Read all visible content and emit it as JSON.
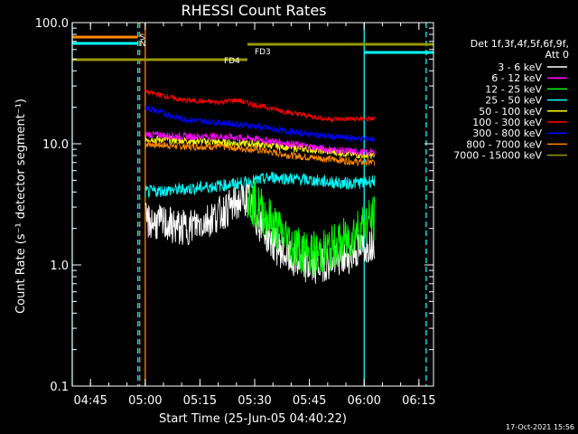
{
  "chart_data": {
    "type": "line",
    "title": "RHESSI Count Rates",
    "xlabel": "Start Time (25-Jun-05 04:40:22)",
    "ylabel": "Count Rate (s⁻¹ detector segment⁻¹)",
    "y_scale": "log",
    "ylim": [
      0.1,
      100
    ],
    "xlim": [
      "04:40",
      "06:19"
    ],
    "x_ticks": [
      "04:45",
      "05:00",
      "05:15",
      "05:30",
      "05:45",
      "06:00",
      "06:15"
    ],
    "y_ticks": [
      "0.1",
      "1.0",
      "10.0",
      "100.0"
    ],
    "legend_header": [
      "Det 1f,3f,4f,5f,6f,9f,",
      "Att 0"
    ],
    "legend_placement": "right",
    "series": [
      {
        "name": "3 - 6 keV",
        "color": "#ffffff",
        "x": [
          "05:00",
          "05:05",
          "05:10",
          "05:15",
          "05:20",
          "05:25",
          "05:28",
          "05:30",
          "05:35",
          "05:40",
          "05:45",
          "05:50",
          "05:55",
          "06:00",
          "06:03"
        ],
        "values": [
          2.3,
          2.2,
          2.0,
          2.2,
          2.6,
          3.2,
          3.6,
          2.5,
          1.5,
          1.1,
          0.95,
          1.05,
          1.15,
          1.4,
          1.6
        ]
      },
      {
        "name": "6 - 12 keV",
        "color": "#ff00ff",
        "x": [
          "05:00",
          "05:10",
          "05:20",
          "05:30",
          "05:40",
          "05:50",
          "06:00",
          "06:03"
        ],
        "values": [
          12,
          11.5,
          11.5,
          11,
          10,
          9,
          8.5,
          8.5
        ]
      },
      {
        "name": "12 - 25 keV",
        "color": "#00ff00",
        "x": [
          "05:28",
          "05:32",
          "05:36",
          "05:40",
          "05:45",
          "05:50",
          "05:55",
          "06:00",
          "06:03"
        ],
        "values": [
          3.5,
          2.8,
          2.0,
          1.5,
          1.2,
          1.3,
          1.6,
          2.2,
          2.4
        ]
      },
      {
        "name": "25 - 50 keV",
        "color": "#00ffff",
        "x": [
          "05:00",
          "05:10",
          "05:20",
          "05:28",
          "05:35",
          "05:45",
          "05:55",
          "06:00",
          "06:03"
        ],
        "values": [
          4.0,
          4.2,
          4.5,
          4.8,
          5.3,
          5.0,
          4.7,
          4.8,
          5.0
        ]
      },
      {
        "name": "50 - 100 keV",
        "color": "#ffff00",
        "x": [
          "05:00",
          "05:15",
          "05:30",
          "05:45",
          "06:00",
          "06:03"
        ],
        "values": [
          11,
          10.5,
          10,
          9,
          8,
          8
        ]
      },
      {
        "name": "100 - 300 keV",
        "color": "#ff0000",
        "x": [
          "05:00",
          "05:10",
          "05:20",
          "05:25",
          "05:30",
          "05:40",
          "05:50",
          "06:00",
          "06:03"
        ],
        "values": [
          27,
          23,
          22,
          23,
          21,
          18,
          16,
          16,
          16
        ]
      },
      {
        "name": "300 - 800 keV",
        "color": "#0000ff",
        "x": [
          "05:00",
          "05:10",
          "05:20",
          "05:30",
          "05:40",
          "05:50",
          "06:00",
          "06:03"
        ],
        "values": [
          20,
          16,
          15,
          14,
          12.5,
          11.5,
          11,
          11
        ]
      },
      {
        "name": "800 - 7000 keV",
        "color": "#ff8800",
        "x": [
          "05:00",
          "05:10",
          "05:20",
          "05:30",
          "05:40",
          "05:50",
          "06:00",
          "06:03"
        ],
        "values": [
          10,
          9.5,
          9.5,
          9,
          8,
          7.5,
          7,
          7
        ]
      },
      {
        "name": "7000 - 15000 keV",
        "color": "#999900",
        "x": [],
        "values": []
      }
    ],
    "annotations": [
      {
        "label": "S",
        "color": "#ff8800",
        "start": "04:40",
        "end": "04:58"
      },
      {
        "label": "N",
        "color": "#00ffff",
        "start": "04:40",
        "end": "04:58"
      },
      {
        "label": "N",
        "color": "#00ffff",
        "start": "06:00",
        "end": "06:19"
      },
      {
        "label": "FD3",
        "color": "#999900",
        "start": "04:40",
        "end": "05:28"
      },
      {
        "label": "FD4",
        "color": "#999900",
        "start": "05:28",
        "end": "06:19"
      }
    ],
    "vertical_markers": [
      {
        "time": "04:40",
        "color": "#00ffff",
        "style": "solid"
      },
      {
        "time": "04:58",
        "color": "#00ffff",
        "style": "dashed"
      },
      {
        "time": "04:58",
        "color": "#ff8800",
        "style": "dashed"
      },
      {
        "time": "05:00",
        "color": "#ff8800",
        "style": "solid"
      },
      {
        "time": "06:00",
        "color": "#00ffff",
        "style": "solid"
      },
      {
        "time": "06:17",
        "color": "#00ffff",
        "style": "dashed"
      }
    ],
    "grid": false
  },
  "footer": {
    "timestamp": "17-Oct-2021 15:56"
  }
}
